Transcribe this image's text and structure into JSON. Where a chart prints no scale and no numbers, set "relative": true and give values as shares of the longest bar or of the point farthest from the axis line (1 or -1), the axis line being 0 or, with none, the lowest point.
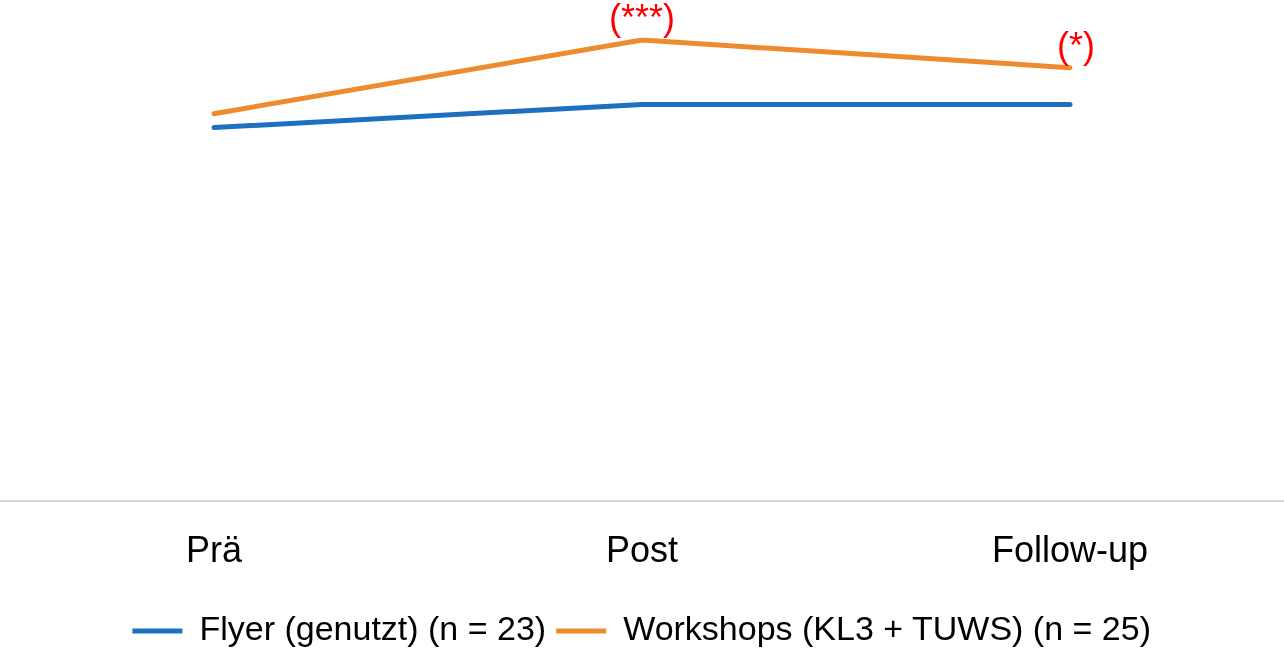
{
  "chart_data": {
    "type": "line",
    "relative": true,
    "categories": [
      "Prä",
      "Post",
      "Follow-up"
    ],
    "series": [
      {
        "name": "Flyer (genutzt) (n = 23)",
        "color": "#1f6fc0",
        "values": [
          0.81,
          0.86,
          0.86
        ]
      },
      {
        "name": "Workshops (KL3 + TUWS) (n = 25)",
        "color": "#ed8b2e",
        "values": [
          0.84,
          1,
          0.94
        ]
      }
    ],
    "annotations": [
      {
        "text": "(***)",
        "x": "Post",
        "y": 1
      },
      {
        "text": "(*)",
        "x": "Follow-up",
        "y": 0.94
      }
    ],
    "legend": "bottom",
    "marker": "none",
    "line_style": "solid"
  }
}
